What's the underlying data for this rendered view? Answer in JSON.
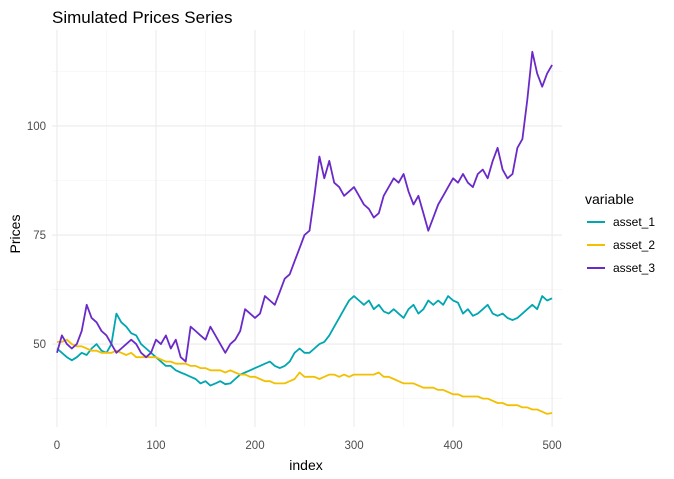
{
  "chart_data": {
    "type": "line",
    "title": "Simulated Prices Series",
    "xlabel": "index",
    "ylabel": "Prices",
    "xlim": [
      -5,
      510
    ],
    "ylim": [
      31,
      122
    ],
    "x_ticks": [
      0,
      100,
      200,
      300,
      400,
      500
    ],
    "y_ticks": [
      50,
      75,
      100
    ],
    "grid": true,
    "legend": {
      "title": "variable",
      "position": "right"
    },
    "series": [
      {
        "name": "asset_1",
        "color": "#00A6B0",
        "points": [
          [
            0,
            49
          ],
          [
            5,
            48
          ],
          [
            10,
            47
          ],
          [
            15,
            46.3
          ],
          [
            20,
            47
          ],
          [
            25,
            48
          ],
          [
            30,
            47.5
          ],
          [
            35,
            49
          ],
          [
            40,
            50
          ],
          [
            45,
            48.5
          ],
          [
            50,
            48
          ],
          [
            55,
            50
          ],
          [
            60,
            57
          ],
          [
            65,
            55
          ],
          [
            70,
            54
          ],
          [
            75,
            52.5
          ],
          [
            80,
            52
          ],
          [
            85,
            50
          ],
          [
            90,
            49
          ],
          [
            95,
            48
          ],
          [
            100,
            47
          ],
          [
            105,
            46
          ],
          [
            110,
            45
          ],
          [
            115,
            45
          ],
          [
            120,
            44
          ],
          [
            125,
            43.5
          ],
          [
            130,
            43
          ],
          [
            135,
            42.5
          ],
          [
            140,
            42
          ],
          [
            145,
            41
          ],
          [
            150,
            41.5
          ],
          [
            155,
            40.5
          ],
          [
            160,
            41
          ],
          [
            165,
            41.5
          ],
          [
            170,
            40.8
          ],
          [
            175,
            41
          ],
          [
            180,
            42
          ],
          [
            185,
            43
          ],
          [
            190,
            43.5
          ],
          [
            195,
            44
          ],
          [
            200,
            44.5
          ],
          [
            205,
            45
          ],
          [
            210,
            45.5
          ],
          [
            215,
            46
          ],
          [
            220,
            45
          ],
          [
            225,
            44.5
          ],
          [
            230,
            45
          ],
          [
            235,
            46
          ],
          [
            240,
            48
          ],
          [
            245,
            49
          ],
          [
            250,
            48
          ],
          [
            255,
            48
          ],
          [
            260,
            49
          ],
          [
            265,
            50
          ],
          [
            270,
            50.5
          ],
          [
            275,
            52
          ],
          [
            280,
            54
          ],
          [
            285,
            56
          ],
          [
            290,
            58
          ],
          [
            295,
            60
          ],
          [
            300,
            61
          ],
          [
            305,
            60
          ],
          [
            310,
            59
          ],
          [
            315,
            60
          ],
          [
            320,
            58
          ],
          [
            325,
            59
          ],
          [
            330,
            57.5
          ],
          [
            335,
            57
          ],
          [
            340,
            58
          ],
          [
            345,
            57
          ],
          [
            350,
            56
          ],
          [
            355,
            58
          ],
          [
            360,
            59
          ],
          [
            365,
            57
          ],
          [
            370,
            58
          ],
          [
            375,
            60
          ],
          [
            380,
            59
          ],
          [
            385,
            60
          ],
          [
            390,
            59
          ],
          [
            395,
            61
          ],
          [
            400,
            60
          ],
          [
            405,
            59.5
          ],
          [
            410,
            57
          ],
          [
            415,
            58
          ],
          [
            420,
            56.5
          ],
          [
            425,
            57
          ],
          [
            430,
            58
          ],
          [
            435,
            59
          ],
          [
            440,
            57
          ],
          [
            445,
            56.5
          ],
          [
            450,
            57
          ],
          [
            455,
            56
          ],
          [
            460,
            55.5
          ],
          [
            465,
            56
          ],
          [
            470,
            57
          ],
          [
            475,
            58
          ],
          [
            480,
            59
          ],
          [
            485,
            58
          ],
          [
            490,
            61
          ],
          [
            495,
            60
          ],
          [
            500,
            60.5
          ]
        ]
      },
      {
        "name": "asset_2",
        "color": "#F2C000",
        "points": [
          [
            0,
            50.5
          ],
          [
            5,
            50.5
          ],
          [
            10,
            51
          ],
          [
            15,
            50
          ],
          [
            20,
            49.5
          ],
          [
            25,
            49.5
          ],
          [
            30,
            49
          ],
          [
            35,
            48.5
          ],
          [
            40,
            48.5
          ],
          [
            45,
            48
          ],
          [
            50,
            48
          ],
          [
            55,
            48
          ],
          [
            60,
            48.5
          ],
          [
            65,
            48
          ],
          [
            70,
            47.5
          ],
          [
            75,
            48
          ],
          [
            80,
            47
          ],
          [
            85,
            47
          ],
          [
            90,
            47
          ],
          [
            95,
            47
          ],
          [
            100,
            47
          ],
          [
            105,
            46.5
          ],
          [
            110,
            46
          ],
          [
            115,
            46
          ],
          [
            120,
            45.5
          ],
          [
            125,
            45.5
          ],
          [
            130,
            45.5
          ],
          [
            135,
            45
          ],
          [
            140,
            45
          ],
          [
            145,
            44.5
          ],
          [
            150,
            44.5
          ],
          [
            155,
            44
          ],
          [
            160,
            44
          ],
          [
            165,
            44
          ],
          [
            170,
            43.5
          ],
          [
            175,
            44
          ],
          [
            180,
            43.5
          ],
          [
            185,
            43
          ],
          [
            190,
            43
          ],
          [
            195,
            42.5
          ],
          [
            200,
            42.5
          ],
          [
            205,
            42
          ],
          [
            210,
            41.5
          ],
          [
            215,
            41.5
          ],
          [
            220,
            41
          ],
          [
            225,
            41
          ],
          [
            230,
            41
          ],
          [
            235,
            41.5
          ],
          [
            240,
            42
          ],
          [
            245,
            43.5
          ],
          [
            250,
            42.5
          ],
          [
            255,
            42.5
          ],
          [
            260,
            42.5
          ],
          [
            265,
            42
          ],
          [
            270,
            42.5
          ],
          [
            275,
            43
          ],
          [
            280,
            43
          ],
          [
            285,
            42.5
          ],
          [
            290,
            43
          ],
          [
            295,
            42.5
          ],
          [
            300,
            43
          ],
          [
            305,
            43
          ],
          [
            310,
            43
          ],
          [
            315,
            43
          ],
          [
            320,
            43
          ],
          [
            325,
            43.5
          ],
          [
            330,
            42.5
          ],
          [
            335,
            42.5
          ],
          [
            340,
            42
          ],
          [
            345,
            41.5
          ],
          [
            350,
            41
          ],
          [
            355,
            41
          ],
          [
            360,
            41
          ],
          [
            365,
            40.5
          ],
          [
            370,
            40
          ],
          [
            375,
            40
          ],
          [
            380,
            40
          ],
          [
            385,
            39.5
          ],
          [
            390,
            39.5
          ],
          [
            395,
            39
          ],
          [
            400,
            38.5
          ],
          [
            405,
            38.5
          ],
          [
            410,
            38
          ],
          [
            415,
            38
          ],
          [
            420,
            38
          ],
          [
            425,
            38
          ],
          [
            430,
            37.5
          ],
          [
            435,
            37.5
          ],
          [
            440,
            37
          ],
          [
            445,
            36.5
          ],
          [
            450,
            36.5
          ],
          [
            455,
            36
          ],
          [
            460,
            36
          ],
          [
            465,
            36
          ],
          [
            470,
            35.5
          ],
          [
            475,
            35.5
          ],
          [
            480,
            35
          ],
          [
            485,
            35
          ],
          [
            490,
            34.5
          ],
          [
            495,
            34
          ],
          [
            500,
            34.2
          ]
        ]
      },
      {
        "name": "asset_3",
        "color": "#6A2AC8",
        "points": [
          [
            0,
            48
          ],
          [
            5,
            52
          ],
          [
            10,
            50
          ],
          [
            15,
            49
          ],
          [
            20,
            50
          ],
          [
            25,
            53
          ],
          [
            30,
            59
          ],
          [
            35,
            56
          ],
          [
            40,
            55
          ],
          [
            45,
            53
          ],
          [
            50,
            52
          ],
          [
            55,
            50
          ],
          [
            60,
            48
          ],
          [
            65,
            49
          ],
          [
            70,
            50
          ],
          [
            75,
            51
          ],
          [
            80,
            50
          ],
          [
            85,
            48
          ],
          [
            90,
            47
          ],
          [
            95,
            48
          ],
          [
            100,
            51
          ],
          [
            105,
            50
          ],
          [
            110,
            52
          ],
          [
            115,
            49
          ],
          [
            120,
            51
          ],
          [
            125,
            47
          ],
          [
            130,
            46
          ],
          [
            135,
            54
          ],
          [
            140,
            53
          ],
          [
            145,
            52
          ],
          [
            150,
            51
          ],
          [
            155,
            54
          ],
          [
            160,
            52
          ],
          [
            165,
            50
          ],
          [
            170,
            48
          ],
          [
            175,
            50
          ],
          [
            180,
            51
          ],
          [
            185,
            53
          ],
          [
            190,
            58
          ],
          [
            195,
            57
          ],
          [
            200,
            56
          ],
          [
            205,
            57
          ],
          [
            210,
            61
          ],
          [
            215,
            60
          ],
          [
            220,
            59
          ],
          [
            225,
            62
          ],
          [
            230,
            65
          ],
          [
            235,
            66
          ],
          [
            240,
            69
          ],
          [
            245,
            72
          ],
          [
            250,
            75
          ],
          [
            255,
            76
          ],
          [
            260,
            84
          ],
          [
            265,
            93
          ],
          [
            270,
            88
          ],
          [
            275,
            92
          ],
          [
            280,
            87
          ],
          [
            285,
            86
          ],
          [
            290,
            84
          ],
          [
            295,
            85
          ],
          [
            300,
            86
          ],
          [
            305,
            84
          ],
          [
            310,
            82
          ],
          [
            315,
            81
          ],
          [
            320,
            79
          ],
          [
            325,
            80
          ],
          [
            330,
            84
          ],
          [
            335,
            86
          ],
          [
            340,
            88
          ],
          [
            345,
            87
          ],
          [
            350,
            89
          ],
          [
            355,
            85
          ],
          [
            360,
            82
          ],
          [
            365,
            84
          ],
          [
            370,
            80
          ],
          [
            375,
            76
          ],
          [
            380,
            79
          ],
          [
            385,
            82
          ],
          [
            390,
            84
          ],
          [
            395,
            86
          ],
          [
            400,
            88
          ],
          [
            405,
            87
          ],
          [
            410,
            89
          ],
          [
            415,
            87
          ],
          [
            420,
            86
          ],
          [
            425,
            89
          ],
          [
            430,
            90
          ],
          [
            435,
            88
          ],
          [
            440,
            92
          ],
          [
            445,
            95
          ],
          [
            450,
            90
          ],
          [
            455,
            88
          ],
          [
            460,
            89
          ],
          [
            465,
            95
          ],
          [
            470,
            97
          ],
          [
            475,
            106
          ],
          [
            480,
            117
          ],
          [
            485,
            112
          ],
          [
            490,
            109
          ],
          [
            495,
            112
          ],
          [
            500,
            114
          ]
        ]
      }
    ]
  }
}
